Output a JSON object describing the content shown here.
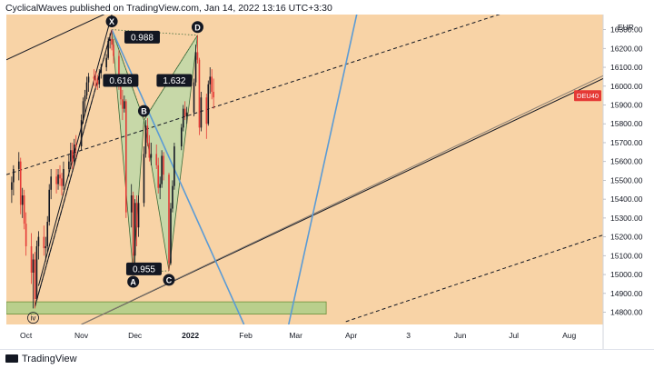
{
  "header": {
    "text": "CyclicalWaves published on TradingView.com, Jan 14, 2022 13:16 UTC+3:30"
  },
  "footer": {
    "brand": "TradingView"
  },
  "colors": {
    "background": "#f8d3a6",
    "candle_up": "#131722",
    "candle_down": "#e53935",
    "pattern_fill": "#b7d9a8",
    "zone_fill": "#b9cf8c",
    "cyan_line": "#5b9bd5",
    "symbol_badge": "#e53935"
  },
  "chart_data": {
    "type": "candlestick",
    "symbol": "DEU40",
    "currency": "EUR",
    "y_axis_ticks": [
      16300,
      16200,
      16100,
      16000,
      15900,
      15800,
      15700,
      15600,
      15500,
      15400,
      15300,
      15200,
      15100,
      15000,
      14900,
      14800
    ],
    "y_axis_tick_labels": [
      "16300.00",
      "16200.00",
      "16100.00",
      "16000.00",
      "15900.00",
      "15800.00",
      "15700.00",
      "15600.00",
      "15500.00",
      "15400.00",
      "15300.00",
      "15200.00",
      "15100.00",
      "15000.00",
      "14900.00",
      "14800.00"
    ],
    "ylim": [
      14735,
      16380
    ],
    "x_axis_labels": [
      "Oct",
      "Nov",
      "Dec",
      "2022",
      "Feb",
      "Mar",
      "Apr",
      "3",
      "Jun",
      "Jul",
      "Aug"
    ],
    "x_axis_dates": [
      "2021-10-01",
      "2021-11-01",
      "2021-12-01",
      "2022-01-01",
      "2022-02-01",
      "2022-03-01",
      "2022-04-01",
      "2022-05-03",
      "2022-06-01",
      "2022-07-01",
      "2022-08-01"
    ],
    "last_price_label": "DEU40",
    "last_price": 15940,
    "harmonic_points": [
      {
        "label": "X",
        "date": "2021-11-18",
        "price": 16300
      },
      {
        "label": "A",
        "date": "2021-11-30",
        "price": 15010
      },
      {
        "label": "B",
        "date": "2021-12-06",
        "price": 15820
      },
      {
        "label": "C",
        "date": "2021-12-20",
        "price": 15020
      },
      {
        "label": "D",
        "date": "2022-01-05",
        "price": 16270
      }
    ],
    "ratio_labels": [
      {
        "text": "0.988",
        "date": "2021-12-05",
        "price": 16260
      },
      {
        "text": "0.616",
        "date": "2021-11-23",
        "price": 16030
      },
      {
        "text": "1.632",
        "date": "2021-12-23",
        "price": 16030
      },
      {
        "text": "0.955",
        "date": "2021-12-06",
        "price": 15030
      }
    ],
    "wave_label": {
      "text": "iv",
      "date": "2021-10-05",
      "price": 14775
    },
    "support_zone": {
      "from_date": "2021-09-20",
      "to_date": "2022-03-18",
      "price_low": 14790,
      "price_high": 14855
    },
    "candles": [
      {
        "date": "2021-09-23",
        "open": 15450,
        "high": 15520,
        "low": 15380,
        "close": 15490
      },
      {
        "date": "2021-09-24",
        "open": 15490,
        "high": 15580,
        "low": 15420,
        "close": 15560
      },
      {
        "date": "2021-09-27",
        "open": 15560,
        "high": 15650,
        "low": 15500,
        "close": 15600
      },
      {
        "date": "2021-09-28",
        "open": 15600,
        "high": 15620,
        "low": 15320,
        "close": 15370
      },
      {
        "date": "2021-09-29",
        "open": 15370,
        "high": 15460,
        "low": 15300,
        "close": 15420
      },
      {
        "date": "2021-09-30",
        "open": 15420,
        "high": 15450,
        "low": 15240,
        "close": 15270
      },
      {
        "date": "2021-10-01",
        "open": 15270,
        "high": 15330,
        "low": 15100,
        "close": 15150
      },
      {
        "date": "2021-10-04",
        "open": 15150,
        "high": 15220,
        "low": 14950,
        "close": 15010
      },
      {
        "date": "2021-10-05",
        "open": 15010,
        "high": 15110,
        "low": 14820,
        "close": 15080
      },
      {
        "date": "2021-10-06",
        "open": 15080,
        "high": 15120,
        "low": 14820,
        "close": 14870
      },
      {
        "date": "2021-10-07",
        "open": 14870,
        "high": 15180,
        "low": 14860,
        "close": 15150
      },
      {
        "date": "2021-10-08",
        "open": 15150,
        "high": 15230,
        "low": 15080,
        "close": 15200
      },
      {
        "date": "2021-10-11",
        "open": 15200,
        "high": 15260,
        "low": 15100,
        "close": 15140
      },
      {
        "date": "2021-10-12",
        "open": 15140,
        "high": 15200,
        "low": 15070,
        "close": 15150
      },
      {
        "date": "2021-10-13",
        "open": 15150,
        "high": 15310,
        "low": 15120,
        "close": 15280
      },
      {
        "date": "2021-10-14",
        "open": 15280,
        "high": 15480,
        "low": 15260,
        "close": 15450
      },
      {
        "date": "2021-10-15",
        "open": 15450,
        "high": 15560,
        "low": 15400,
        "close": 15520
      },
      {
        "date": "2021-10-18",
        "open": 15520,
        "high": 15560,
        "low": 15430,
        "close": 15480
      },
      {
        "date": "2021-10-19",
        "open": 15480,
        "high": 15560,
        "low": 15450,
        "close": 15530
      },
      {
        "date": "2021-10-20",
        "open": 15530,
        "high": 15580,
        "low": 15470,
        "close": 15510
      },
      {
        "date": "2021-10-21",
        "open": 15510,
        "high": 15540,
        "low": 15420,
        "close": 15470
      },
      {
        "date": "2021-10-22",
        "open": 15470,
        "high": 15600,
        "low": 15450,
        "close": 15560
      },
      {
        "date": "2021-10-25",
        "open": 15560,
        "high": 15640,
        "low": 15520,
        "close": 15600
      },
      {
        "date": "2021-10-26",
        "open": 15600,
        "high": 15700,
        "low": 15560,
        "close": 15660
      },
      {
        "date": "2021-10-27",
        "open": 15660,
        "high": 15700,
        "low": 15560,
        "close": 15600
      },
      {
        "date": "2021-10-28",
        "open": 15600,
        "high": 15720,
        "low": 15580,
        "close": 15690
      },
      {
        "date": "2021-10-29",
        "open": 15690,
        "high": 15740,
        "low": 15620,
        "close": 15680
      },
      {
        "date": "2021-11-01",
        "open": 15680,
        "high": 15850,
        "low": 15660,
        "close": 15820
      },
      {
        "date": "2021-11-02",
        "open": 15820,
        "high": 15940,
        "low": 15800,
        "close": 15920
      },
      {
        "date": "2021-11-03",
        "open": 15920,
        "high": 15980,
        "low": 15860,
        "close": 15950
      },
      {
        "date": "2021-11-04",
        "open": 15950,
        "high": 16050,
        "low": 15930,
        "close": 16020
      },
      {
        "date": "2021-11-05",
        "open": 16020,
        "high": 16070,
        "low": 15970,
        "close": 16050
      },
      {
        "date": "2021-11-08",
        "open": 16050,
        "high": 16090,
        "low": 16000,
        "close": 16040
      },
      {
        "date": "2021-11-09",
        "open": 16040,
        "high": 16080,
        "low": 15990,
        "close": 16030
      },
      {
        "date": "2021-11-10",
        "open": 16030,
        "high": 16060,
        "low": 15980,
        "close": 16010
      },
      {
        "date": "2021-11-11",
        "open": 16010,
        "high": 16090,
        "low": 15990,
        "close": 16070
      },
      {
        "date": "2021-11-12",
        "open": 16070,
        "high": 16120,
        "low": 16040,
        "close": 16100
      },
      {
        "date": "2021-11-15",
        "open": 16100,
        "high": 16170,
        "low": 16080,
        "close": 16150
      },
      {
        "date": "2021-11-16",
        "open": 16150,
        "high": 16260,
        "low": 16140,
        "close": 16240
      },
      {
        "date": "2021-11-17",
        "open": 16240,
        "high": 16280,
        "low": 16200,
        "close": 16250
      },
      {
        "date": "2021-11-18",
        "open": 16250,
        "high": 16300,
        "low": 16190,
        "close": 16220
      },
      {
        "date": "2021-11-19",
        "open": 16220,
        "high": 16250,
        "low": 16120,
        "close": 16160
      },
      {
        "date": "2021-11-22",
        "open": 16160,
        "high": 16190,
        "low": 15980,
        "close": 16020
      },
      {
        "date": "2021-11-23",
        "open": 16020,
        "high": 16050,
        "low": 15900,
        "close": 15930
      },
      {
        "date": "2021-11-24",
        "open": 15930,
        "high": 15980,
        "low": 15820,
        "close": 15880
      },
      {
        "date": "2021-11-25",
        "open": 15880,
        "high": 15950,
        "low": 15860,
        "close": 15920
      },
      {
        "date": "2021-11-26",
        "open": 15920,
        "high": 15930,
        "low": 15300,
        "close": 15330
      },
      {
        "date": "2021-11-29",
        "open": 15330,
        "high": 15480,
        "low": 15250,
        "close": 15420
      },
      {
        "date": "2021-11-30",
        "open": 15420,
        "high": 15440,
        "low": 15010,
        "close": 15100
      },
      {
        "date": "2021-12-01",
        "open": 15100,
        "high": 15400,
        "low": 15050,
        "close": 15380
      },
      {
        "date": "2021-12-02",
        "open": 15380,
        "high": 15420,
        "low": 15150,
        "close": 15250
      },
      {
        "date": "2021-12-03",
        "open": 15250,
        "high": 15420,
        "low": 15200,
        "close": 15380
      },
      {
        "date": "2021-12-06",
        "open": 15380,
        "high": 15680,
        "low": 15360,
        "close": 15640
      },
      {
        "date": "2021-12-07",
        "open": 15640,
        "high": 15820,
        "low": 15620,
        "close": 15790
      },
      {
        "date": "2021-12-08",
        "open": 15790,
        "high": 15830,
        "low": 15680,
        "close": 15700
      },
      {
        "date": "2021-12-09",
        "open": 15700,
        "high": 15740,
        "low": 15600,
        "close": 15620
      },
      {
        "date": "2021-12-10",
        "open": 15620,
        "high": 15700,
        "low": 15580,
        "close": 15640
      },
      {
        "date": "2021-12-13",
        "open": 15640,
        "high": 15690,
        "low": 15560,
        "close": 15580
      },
      {
        "date": "2021-12-14",
        "open": 15580,
        "high": 15620,
        "low": 15430,
        "close": 15460
      },
      {
        "date": "2021-12-15",
        "open": 15460,
        "high": 15520,
        "low": 15400,
        "close": 15480
      },
      {
        "date": "2021-12-16",
        "open": 15480,
        "high": 15660,
        "low": 15460,
        "close": 15630
      },
      {
        "date": "2021-12-17",
        "open": 15630,
        "high": 15650,
        "low": 15500,
        "close": 15530
      },
      {
        "date": "2021-12-20",
        "open": 15530,
        "high": 15540,
        "low": 15020,
        "close": 15060
      },
      {
        "date": "2021-12-21",
        "open": 15060,
        "high": 15380,
        "low": 15050,
        "close": 15350
      },
      {
        "date": "2021-12-22",
        "open": 15350,
        "high": 15500,
        "low": 15330,
        "close": 15470
      },
      {
        "date": "2021-12-23",
        "open": 15470,
        "high": 15700,
        "low": 15450,
        "close": 15680
      },
      {
        "date": "2021-12-27",
        "open": 15680,
        "high": 15800,
        "low": 15660,
        "close": 15780
      },
      {
        "date": "2021-12-28",
        "open": 15780,
        "high": 15900,
        "low": 15760,
        "close": 15880
      },
      {
        "date": "2021-12-29",
        "open": 15880,
        "high": 15920,
        "low": 15820,
        "close": 15840
      },
      {
        "date": "2021-12-30",
        "open": 15840,
        "high": 15890,
        "low": 15800,
        "close": 15860
      },
      {
        "date": "2022-01-03",
        "open": 15860,
        "high": 16040,
        "low": 15840,
        "close": 16020
      },
      {
        "date": "2022-01-04",
        "open": 16020,
        "high": 16220,
        "low": 16000,
        "close": 16180
      },
      {
        "date": "2022-01-05",
        "open": 16180,
        "high": 16270,
        "low": 16120,
        "close": 16140
      },
      {
        "date": "2022-01-06",
        "open": 16140,
        "high": 16150,
        "low": 15740,
        "close": 15780
      },
      {
        "date": "2022-01-07",
        "open": 15780,
        "high": 15970,
        "low": 15760,
        "close": 15940
      },
      {
        "date": "2022-01-10",
        "open": 15940,
        "high": 15960,
        "low": 15720,
        "close": 15800
      },
      {
        "date": "2022-01-11",
        "open": 15800,
        "high": 16030,
        "low": 15790,
        "close": 16010
      },
      {
        "date": "2022-01-12",
        "open": 16010,
        "high": 16100,
        "low": 15960,
        "close": 16050
      },
      {
        "date": "2022-01-13",
        "open": 16050,
        "high": 16090,
        "low": 15930,
        "close": 15970
      },
      {
        "date": "2022-01-14",
        "open": 15970,
        "high": 16040,
        "low": 15880,
        "close": 15940
      }
    ],
    "trendlines": [
      {
        "style": "solid",
        "color": "#131722",
        "from": {
          "date": "2021-09-20",
          "price": 16140
        },
        "to": {
          "date": "2021-11-18",
          "price": 16400
        }
      },
      {
        "style": "solid",
        "color": "#131722",
        "from": {
          "date": "2021-10-06",
          "price": 14830
        },
        "to": {
          "date": "2021-11-18",
          "price": 16300
        }
      },
      {
        "style": "solid",
        "color": "#131722",
        "from": {
          "date": "2021-10-08",
          "price": 14940
        },
        "to": {
          "date": "2021-11-20",
          "price": 16450
        }
      },
      {
        "style": "dashed",
        "color": "#131722",
        "from": {
          "date": "2021-10-06",
          "price": 14830
        },
        "to": {
          "date": "2021-11-18",
          "price": 16300
        }
      },
      {
        "style": "dashed",
        "color": "#131722",
        "from": {
          "date": "2021-09-20",
          "price": 15530
        },
        "to": {
          "date": "2022-08-20",
          "price": 16560
        }
      },
      {
        "style": "dashed",
        "color": "#131722",
        "from": {
          "date": "2022-03-29",
          "price": 14750
        },
        "to": {
          "date": "2022-08-20",
          "price": 15210
        }
      },
      {
        "style": "solid",
        "color": "#131722",
        "from": {
          "date": "2021-11-01",
          "price": 14735
        },
        "to": {
          "date": "2022-08-20",
          "price": 16040
        }
      },
      {
        "style": "solid",
        "color": "#8a7f74",
        "from": {
          "date": "2021-11-01",
          "price": 14735
        },
        "to": {
          "date": "2022-08-20",
          "price": 16055
        }
      },
      {
        "style": "solid",
        "color": "#5b9bd5",
        "from": {
          "date": "2021-11-18",
          "price": 16300
        },
        "to": {
          "date": "2022-01-31",
          "price": 14735
        }
      },
      {
        "style": "solid",
        "color": "#5b9bd5",
        "from": {
          "date": "2022-02-25",
          "price": 14735
        },
        "to": {
          "date": "2022-04-05",
          "price": 16420
        }
      }
    ]
  }
}
